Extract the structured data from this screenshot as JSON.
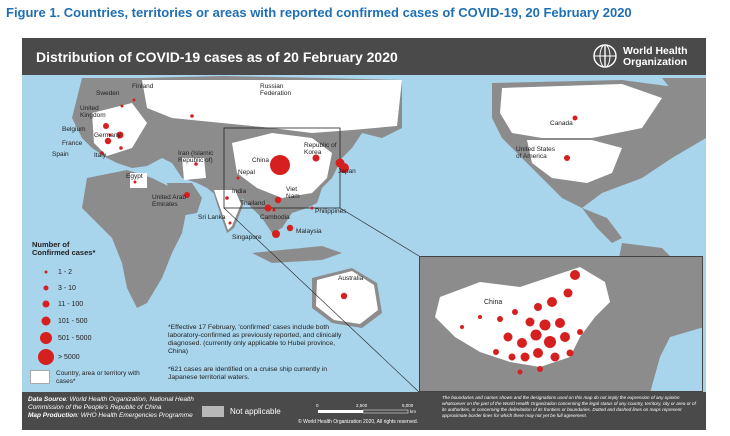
{
  "figure_title": "Figure 1. Countries, territories or areas with reported confirmed cases of COVID-19, 20 February 2020",
  "map_title": "Distribution of COVID-19 cases as of 20 February 2020",
  "who": {
    "name_line1": "World Health",
    "name_line2": "Organization"
  },
  "countries": [
    {
      "name": "Finland"
    },
    {
      "name": "Sweden"
    },
    {
      "name": "United Kingdom"
    },
    {
      "name": "Belgium"
    },
    {
      "name": "Germany"
    },
    {
      "name": "France"
    },
    {
      "name": "Spain"
    },
    {
      "name": "Italy"
    },
    {
      "name": "Russian Federation"
    },
    {
      "name": "Iran (Islamic Republic of)"
    },
    {
      "name": "Egypt"
    },
    {
      "name": "United Arab Emirates"
    },
    {
      "name": "India"
    },
    {
      "name": "Nepal"
    },
    {
      "name": "Sri Lanka"
    },
    {
      "name": "China"
    },
    {
      "name": "Republic of Korea"
    },
    {
      "name": "Japan"
    },
    {
      "name": "Viet Nam"
    },
    {
      "name": "Thailand"
    },
    {
      "name": "Cambodia"
    },
    {
      "name": "Philippines"
    },
    {
      "name": "Malaysia"
    },
    {
      "name": "Singapore"
    },
    {
      "name": "Australia"
    },
    {
      "name": "Canada"
    },
    {
      "name": "United States of America"
    }
  ],
  "legend": {
    "title": "Number of Confirmed cases*",
    "classes": [
      "1 - 2",
      "3 - 10",
      "11 - 100",
      "101 - 500",
      "501 - 5000",
      "> 5000"
    ],
    "marker_color": "#d61f1f",
    "white_label": "Country, area or territory with cases*"
  },
  "notes": {
    "effective": "*Effective 17 February, 'confirmed' cases include both laboratory-confirmed as previously reported, and clinically diagnosed. (currently only applicable to Hubei province, China)",
    "cruise": "*621 cases are identified on a cruise ship currently in Japanese territorial waters."
  },
  "footer": {
    "data_source_label": "Data Source",
    "data_source": "World Health Organization, National Health Commission of the People's Republic of China",
    "map_production_label": "Map Production",
    "map_production": "WHO Health Emergencies Programme",
    "not_applicable": "Not applicable",
    "scale_ticks": [
      "0",
      "2,500",
      "5,000"
    ],
    "scale_unit": "km",
    "copyright": "© World Health Organization 2020, All rights reserved.",
    "disclaimer": "The boundaries and names shown and the designations used on this map do not imply the expression of any opinion whatsoever on the part of the World Health Organization concerning the legal status of any country, territory, city or area or of its authorities, or concerning the delimitation of its frontiers or boundaries. Dotted and dashed lines on maps represent approximate border lines for which there may not yet be full agreement."
  },
  "inset_label": "China",
  "colors": {
    "ocean": "#a8d4ec",
    "land": "#8c8c8c",
    "affected": "#ffffff",
    "marker": "#d61f1f",
    "header": "#4a4a4a",
    "title_blue": "#1f6fb5"
  }
}
